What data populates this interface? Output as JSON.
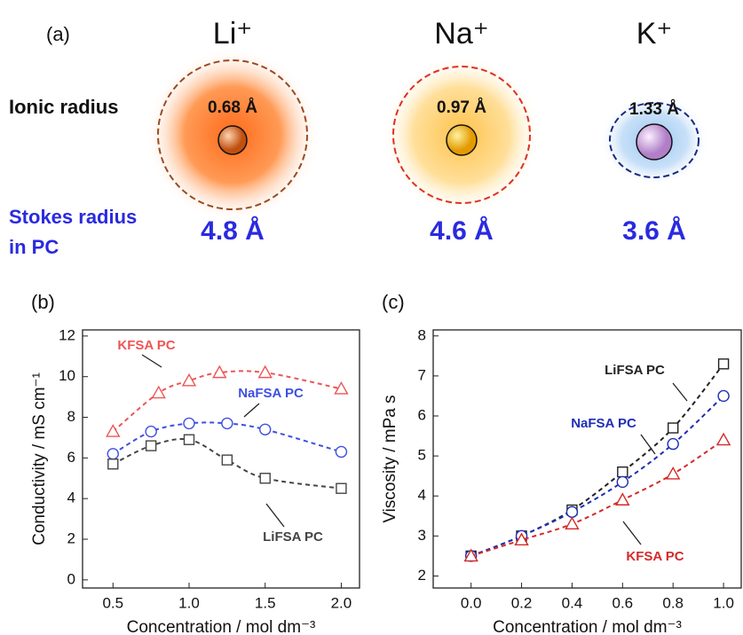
{
  "diagram": {
    "panel_label": "(a)",
    "ionic_radius_label": "Ionic radius",
    "stokes_radius_label": "Stokes radius in PC",
    "ions": [
      {
        "symbol": "Li⁺",
        "ionic_radius": "0.68 Å",
        "stokes_radius": "4.8 Å"
      },
      {
        "symbol": "Na⁺",
        "ionic_radius": "0.97 Å",
        "stokes_radius": "4.6 Å"
      },
      {
        "symbol": "K⁺",
        "ionic_radius": "1.33 Å",
        "stokes_radius": "3.6 Å"
      }
    ]
  },
  "chart_data": [
    {
      "type": "line",
      "panel_label": "(b)",
      "x_label": "Concentration / mol dm⁻³",
      "y_label": "Conductivity / mS cm⁻¹",
      "xlim": [
        0.3,
        2.12
      ],
      "ylim": [
        -0.4,
        12.3
      ],
      "xticks": [
        0.5,
        {
          "value": 1.0,
          "label": "1.0"
        },
        1.5,
        {
          "value": 2.0,
          "label": "2.0"
        }
      ],
      "yticks": [
        0,
        2,
        4,
        6,
        8,
        10,
        12
      ],
      "grid": false,
      "series": [
        {
          "name": "KFSA PC",
          "color": "#ee5555",
          "marker": "triangle",
          "x": [
            0.5,
            0.8,
            1.0,
            1.2,
            1.5,
            2.0
          ],
          "values": [
            7.3,
            9.2,
            9.8,
            10.2,
            10.2,
            9.4
          ]
        },
        {
          "name": "NaFSA PC",
          "color": "#3f4fe0",
          "marker": "circle",
          "x": [
            0.5,
            0.75,
            1.0,
            1.25,
            1.5,
            2.0
          ],
          "values": [
            6.2,
            7.3,
            7.7,
            7.7,
            7.4,
            6.3
          ]
        },
        {
          "name": "LiFSA PC",
          "color": "#444444",
          "marker": "square",
          "x": [
            0.5,
            0.75,
            1.0,
            1.25,
            1.5,
            2.0
          ],
          "values": [
            5.7,
            6.6,
            6.9,
            5.9,
            5.0,
            4.5
          ]
        }
      ]
    },
    {
      "type": "line",
      "panel_label": "(c)",
      "x_label": "Concentration / mol dm⁻³",
      "y_label": "Viscosity / mPa s",
      "xlim": [
        -0.15,
        1.07
      ],
      "ylim": [
        1.7,
        8.15
      ],
      "xticks": [
        {
          "value": 0.0,
          "label": "0.0"
        },
        0.2,
        0.4,
        0.6,
        0.8,
        {
          "value": 1.0,
          "label": "1.0"
        }
      ],
      "yticks": [
        2,
        3,
        4,
        5,
        6,
        7,
        8
      ],
      "grid": false,
      "series": [
        {
          "name": "LiFSA PC",
          "color": "#222222",
          "marker": "square",
          "x": [
            0.0,
            0.2,
            0.4,
            0.6,
            0.8,
            1.0
          ],
          "values": [
            2.5,
            3.0,
            3.65,
            4.6,
            5.7,
            7.3
          ]
        },
        {
          "name": "NaFSA PC",
          "color": "#1f2fb5",
          "marker": "circle",
          "x": [
            0.0,
            0.2,
            0.4,
            0.6,
            0.8,
            1.0
          ],
          "values": [
            2.5,
            3.0,
            3.6,
            4.35,
            5.3,
            6.5
          ]
        },
        {
          "name": "KFSA PC",
          "color": "#d42a2a",
          "marker": "triangle",
          "x": [
            0.0,
            0.2,
            0.4,
            0.6,
            0.8,
            1.0
          ],
          "values": [
            2.5,
            2.9,
            3.3,
            3.9,
            4.55,
            5.4
          ]
        }
      ]
    }
  ]
}
